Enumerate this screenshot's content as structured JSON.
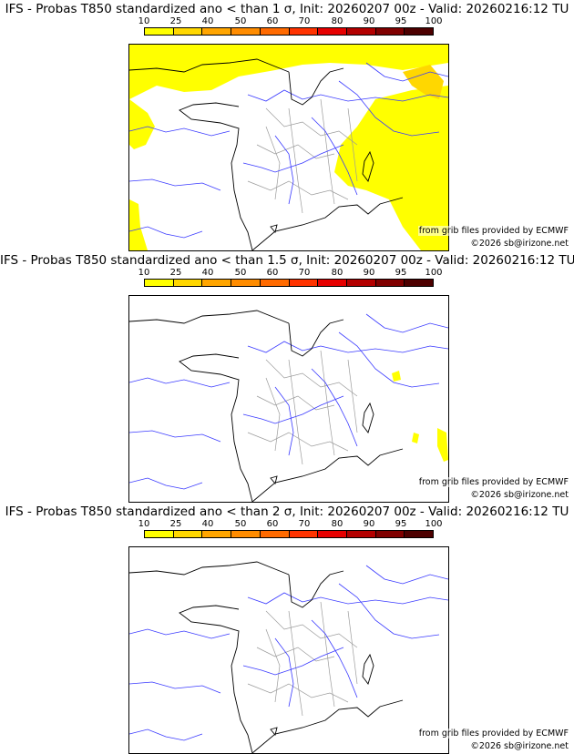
{
  "palette": {
    "yellow": "#ffff00",
    "bands": [
      "#ffff00",
      "#ffd700",
      "#ffa500",
      "#ff8c00",
      "#ff6a00",
      "#ff3300",
      "#e60000",
      "#b30000",
      "#800000",
      "#4d0000"
    ],
    "river": "#3a3aff",
    "admin": "#9a9a9a",
    "coast": "#000000"
  },
  "scale": {
    "ticks": [
      "10",
      "25",
      "40",
      "50",
      "60",
      "70",
      "80",
      "90",
      "95",
      "100"
    ]
  },
  "panels": [
    {
      "title": "IFS - Probas T850  standardized ano < than 1 σ, Init: 20260207 00z - Valid: 20260216:12 TU",
      "credit_source": "from grib files provided by ECMWF",
      "credit_copyright": "©2026 sb@irizone.net"
    },
    {
      "title": "IFS - Probas T850  standardized ano < than 1.5 σ, Init: 20260207 00z - Valid: 20260216:12 TU",
      "credit_source": "from grib files provided by ECMWF",
      "credit_copyright": "©2026 sb@irizone.net"
    },
    {
      "title": "IFS - Probas T850  standardized ano < than 2 σ, Init: 20260207 00z - Valid: 20260216:12 TU",
      "credit_source": "from grib files provided by ECMWF",
      "credit_copyright": "©2026 sb@irizone.net"
    }
  ]
}
